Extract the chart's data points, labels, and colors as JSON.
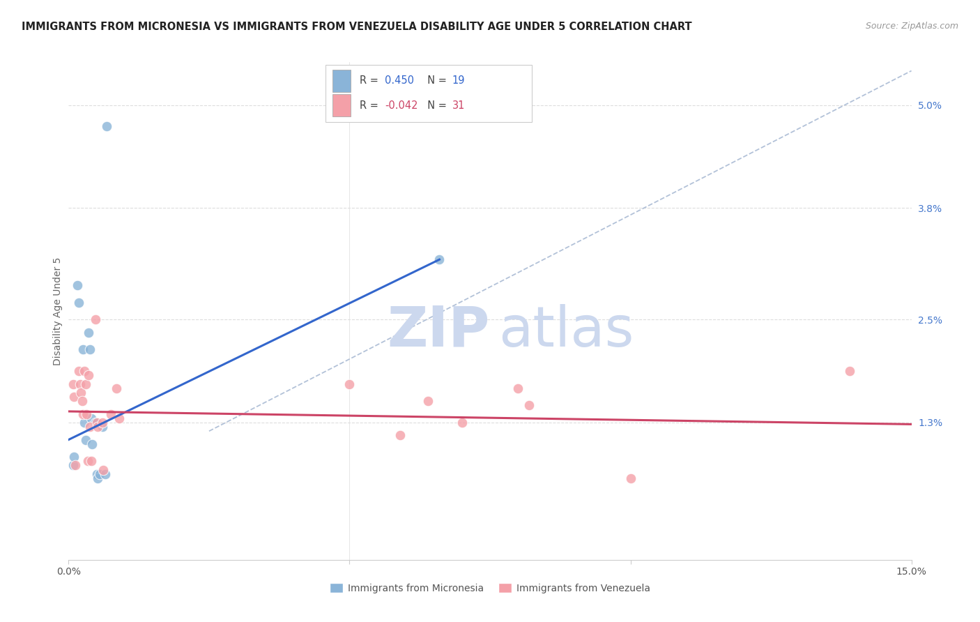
{
  "title": "IMMIGRANTS FROM MICRONESIA VS IMMIGRANTS FROM VENEZUELA DISABILITY AGE UNDER 5 CORRELATION CHART",
  "source": "Source: ZipAtlas.com",
  "ylabel": "Disability Age Under 5",
  "xlim": [
    0.0,
    0.15
  ],
  "ylim": [
    -0.003,
    0.055
  ],
  "yticks_right": [
    0.013,
    0.025,
    0.038,
    0.05
  ],
  "ytick_labels_right": [
    "1.3%",
    "2.5%",
    "3.8%",
    "5.0%"
  ],
  "micronesia_color": "#8ab4d8",
  "venezuela_color": "#f4a0a8",
  "micronesia_label": "Immigrants from Micronesia",
  "venezuela_label": "Immigrants from Venezuela",
  "blue_line_color": "#3366cc",
  "pink_line_color": "#cc4466",
  "dashed_line_color": "#aabbd4",
  "micronesia_points": [
    [
      0.0008,
      0.008
    ],
    [
      0.0009,
      0.009
    ],
    [
      0.0015,
      0.029
    ],
    [
      0.0018,
      0.027
    ],
    [
      0.0025,
      0.0215
    ],
    [
      0.0028,
      0.013
    ],
    [
      0.003,
      0.011
    ],
    [
      0.0035,
      0.0235
    ],
    [
      0.0038,
      0.0215
    ],
    [
      0.004,
      0.0135
    ],
    [
      0.0042,
      0.0105
    ],
    [
      0.0048,
      0.013
    ],
    [
      0.005,
      0.007
    ],
    [
      0.0052,
      0.0065
    ],
    [
      0.0055,
      0.007
    ],
    [
      0.006,
      0.0125
    ],
    [
      0.0065,
      0.007
    ],
    [
      0.0068,
      0.0475
    ],
    [
      0.066,
      0.032
    ]
  ],
  "venezuela_points": [
    [
      0.0008,
      0.0175
    ],
    [
      0.001,
      0.016
    ],
    [
      0.0012,
      0.008
    ],
    [
      0.0018,
      0.019
    ],
    [
      0.002,
      0.0175
    ],
    [
      0.0022,
      0.0165
    ],
    [
      0.0024,
      0.0155
    ],
    [
      0.0026,
      0.014
    ],
    [
      0.0028,
      0.019
    ],
    [
      0.003,
      0.0175
    ],
    [
      0.0032,
      0.014
    ],
    [
      0.0034,
      0.0085
    ],
    [
      0.0036,
      0.0185
    ],
    [
      0.0038,
      0.0125
    ],
    [
      0.004,
      0.0085
    ],
    [
      0.0048,
      0.025
    ],
    [
      0.005,
      0.013
    ],
    [
      0.0052,
      0.0125
    ],
    [
      0.006,
      0.013
    ],
    [
      0.0062,
      0.0075
    ],
    [
      0.0075,
      0.014
    ],
    [
      0.0085,
      0.017
    ],
    [
      0.009,
      0.0135
    ],
    [
      0.05,
      0.0175
    ],
    [
      0.059,
      0.0115
    ],
    [
      0.064,
      0.0155
    ],
    [
      0.07,
      0.013
    ],
    [
      0.08,
      0.017
    ],
    [
      0.082,
      0.015
    ],
    [
      0.1,
      0.0065
    ],
    [
      0.139,
      0.019
    ]
  ],
  "micronesia_line": [
    [
      0.0,
      0.011
    ],
    [
      0.066,
      0.032
    ]
  ],
  "venezuela_line": [
    [
      0.0,
      0.0143
    ],
    [
      0.15,
      0.0128
    ]
  ],
  "dashed_line": [
    [
      0.025,
      0.012
    ],
    [
      0.15,
      0.054
    ]
  ]
}
